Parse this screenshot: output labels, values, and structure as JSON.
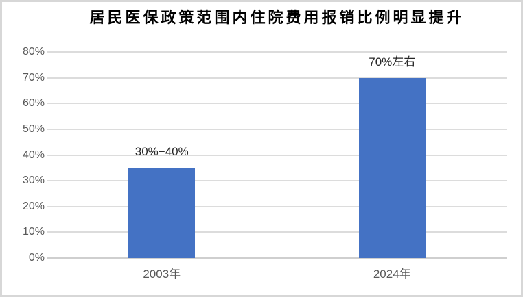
{
  "chart_data": {
    "type": "bar",
    "title": "居民医保政策范围内住院费用报销比例明显提升",
    "categories": [
      "2003年",
      "2024年"
    ],
    "values": [
      35,
      70
    ],
    "bar_labels": [
      "30%−40%",
      "70%左右"
    ],
    "ytick_labels": [
      "0%",
      "10%",
      "20%",
      "30%",
      "40%",
      "50%",
      "60%",
      "70%",
      "80%"
    ],
    "ytick_values": [
      0,
      10,
      20,
      30,
      40,
      50,
      60,
      70,
      80
    ],
    "ylim": [
      0,
      80
    ],
    "xlabel": "",
    "ylabel": "",
    "grid": "horizontal",
    "legend": "none"
  },
  "colors": {
    "bar": "#4472C4",
    "gridline": "#DCDCDC",
    "axis_line": "#CFCFCF",
    "tick_label": "#595959",
    "bar_label": "#262626",
    "title": "#000000",
    "frame_border": "#D7D7D7"
  }
}
